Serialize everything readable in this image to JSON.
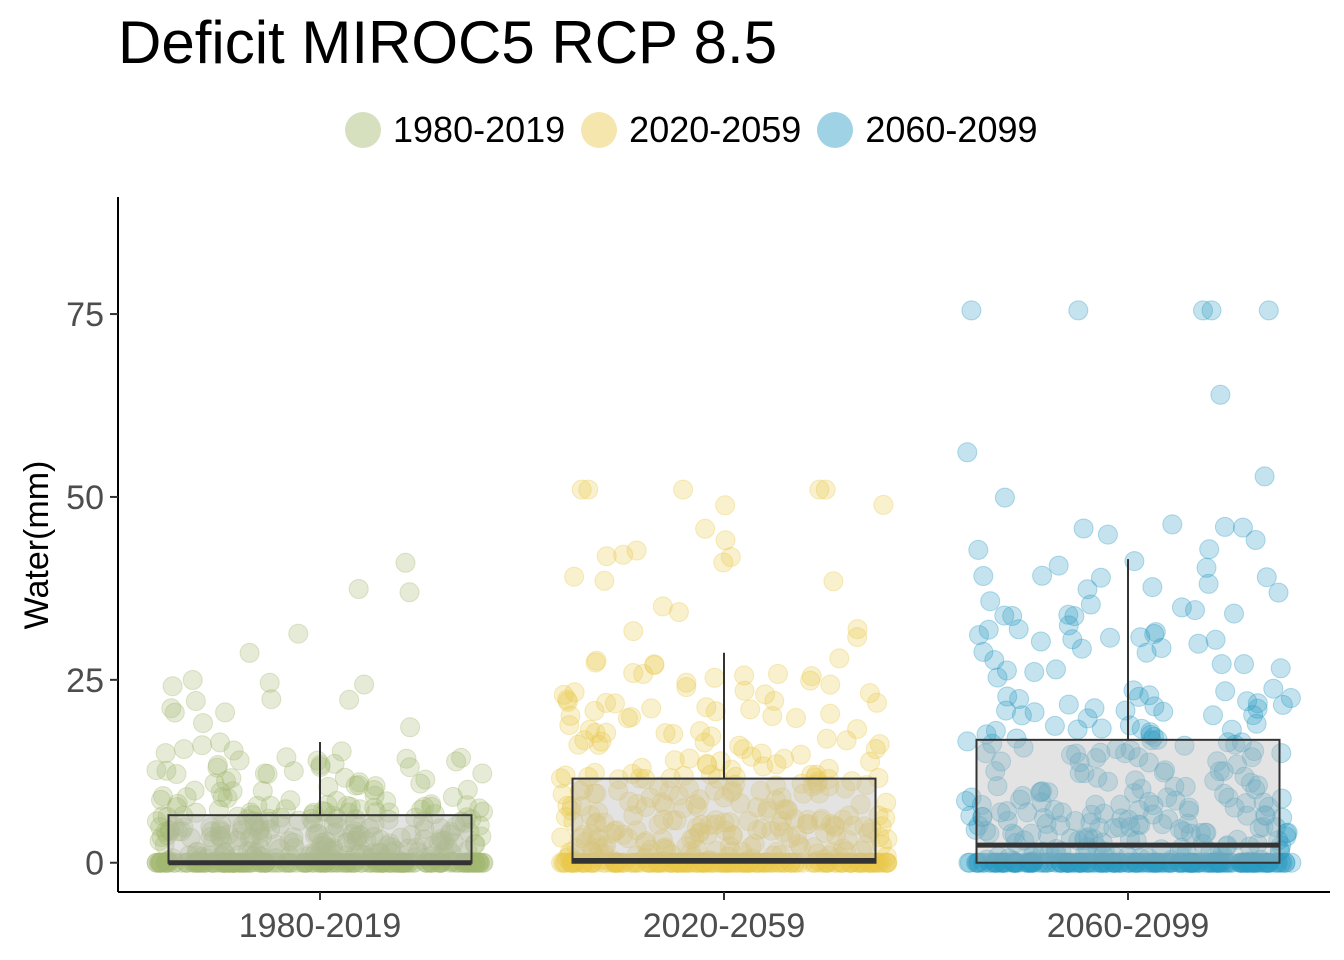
{
  "chart_data": {
    "type": "boxplot",
    "title": "Deficit MIROC5 RCP 8.5",
    "xlabel": "",
    "ylabel": "Water(mm)",
    "ylim": [
      -4,
      91
    ],
    "yticks": [
      0,
      25,
      50,
      75
    ],
    "categories": [
      "1980-2019",
      "2020-2059",
      "2060-2099"
    ],
    "legend_position": "top",
    "series": [
      {
        "name": "1980-2019",
        "color": "#a3b86f",
        "box": {
          "min": 0,
          "q1": 0,
          "median": 0,
          "q3": 6.5,
          "max": 16.5
        },
        "points_count": 480,
        "points_max": 41
      },
      {
        "name": "2020-2059",
        "color": "#e8c84a",
        "box": {
          "min": 0,
          "q1": 0,
          "median": 0.3,
          "q3": 11.5,
          "max": 28.7
        },
        "points_count": 480,
        "points_max": 51
      },
      {
        "name": "2060-2099",
        "color": "#2a9bc3",
        "box": {
          "min": 0,
          "q1": 0,
          "median": 2.4,
          "q3": 16.8,
          "max": 41.5
        },
        "points_count": 480,
        "points_max": 75.5
      }
    ]
  }
}
